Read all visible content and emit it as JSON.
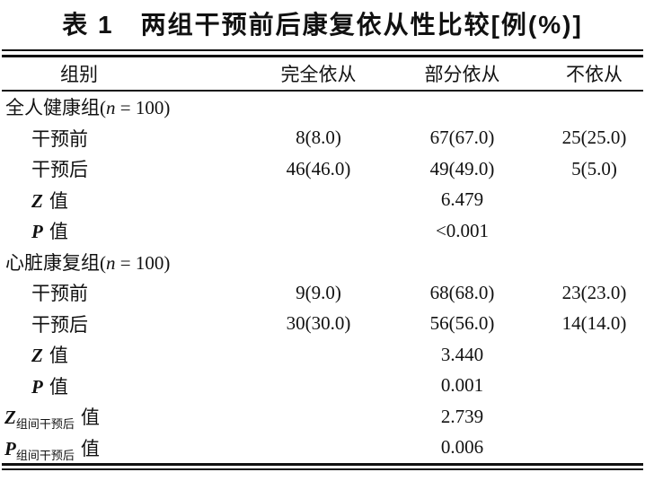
{
  "caption": "表 1　两组干预前后康复依从性比较[例(%)]",
  "colors": {
    "text": "#111111",
    "rule": "#111111",
    "background": "#ffffff"
  },
  "table": {
    "headers": [
      "组别",
      "完全依从",
      "部分依从",
      "不依从"
    ],
    "groups": [
      {
        "name_pre": "全人健康组(",
        "name_var": "n",
        "name_post": " = 100)",
        "rows": [
          {
            "label": "干预前",
            "values": [
              "8(8.0)",
              "67(67.0)",
              "25(25.0)"
            ]
          },
          {
            "label": "干预后",
            "values": [
              "46(46.0)",
              "49(49.0)",
              "5(5.0)"
            ]
          }
        ],
        "z_letter": "Z",
        "z_suffix": "值",
        "z_value": "6.479",
        "p_letter": "P",
        "p_suffix": "值",
        "p_value": "<0.001"
      },
      {
        "name_pre": "心脏康复组(",
        "name_var": "n",
        "name_post": " = 100)",
        "rows": [
          {
            "label": "干预前",
            "values": [
              "9(9.0)",
              "68(68.0)",
              "23(23.0)"
            ]
          },
          {
            "label": "干预后",
            "values": [
              "30(30.0)",
              "56(56.0)",
              "14(14.0)"
            ]
          }
        ],
        "z_letter": "Z",
        "z_suffix": "值",
        "z_value": "3.440",
        "p_letter": "P",
        "p_suffix": "值",
        "p_value": "0.001"
      }
    ],
    "between_group": {
      "z_letter": "Z",
      "z_subscript": "组间干预后",
      "z_suffix": "值",
      "z_value": "2.739",
      "p_letter": "P",
      "p_subscript": "组间干预后",
      "p_suffix": "值",
      "p_value": "0.006"
    }
  }
}
